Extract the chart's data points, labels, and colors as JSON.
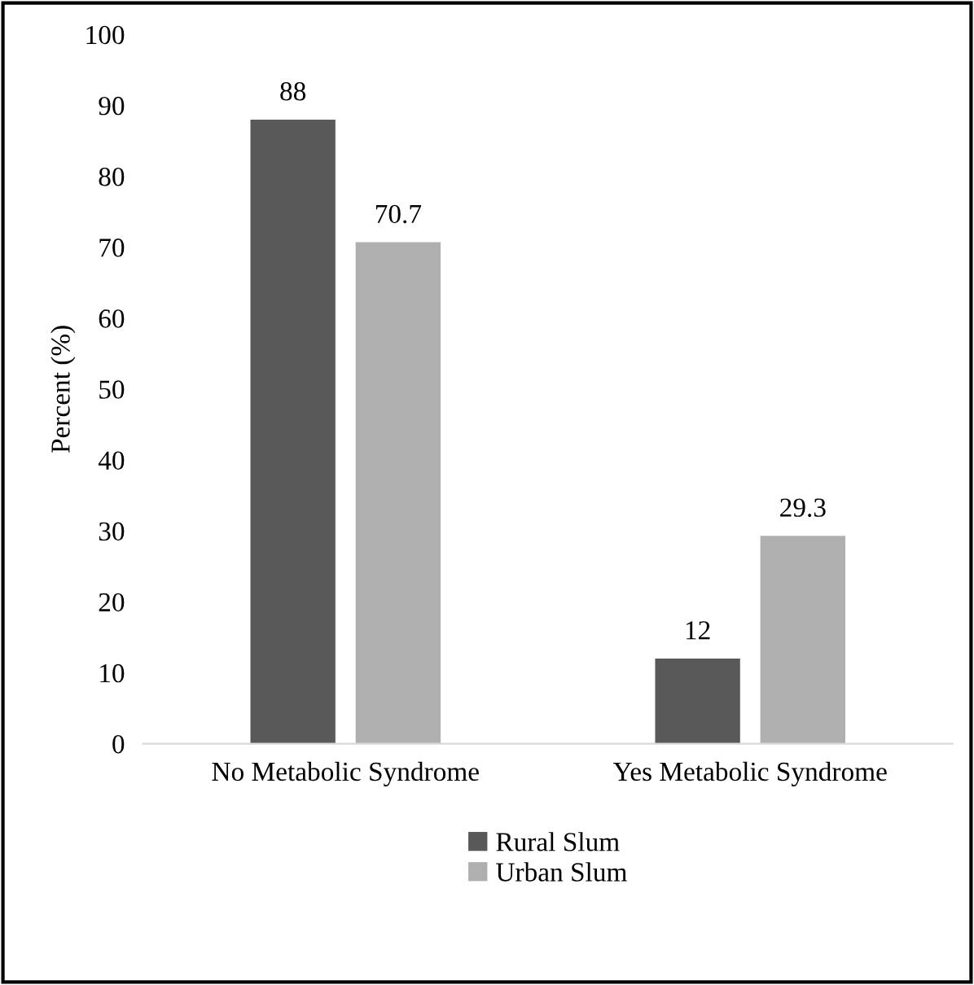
{
  "chart_data": {
    "type": "bar",
    "ylabel": "Percent (%)",
    "categories": [
      "No Metabolic Syndrome",
      "Yes Metabolic Syndrome"
    ],
    "series": [
      {
        "name": "Rural Slum",
        "color": "#595959",
        "values": [
          88,
          12
        ]
      },
      {
        "name": "Urban Slum",
        "color": "#afafaf",
        "values": [
          70.7,
          29.3
        ]
      }
    ],
    "ylim": [
      0,
      100
    ],
    "yticks": [
      0,
      10,
      20,
      30,
      40,
      50,
      60,
      70,
      80,
      90,
      100
    ],
    "grid": false,
    "legend": "bottom",
    "data_labels": true
  }
}
